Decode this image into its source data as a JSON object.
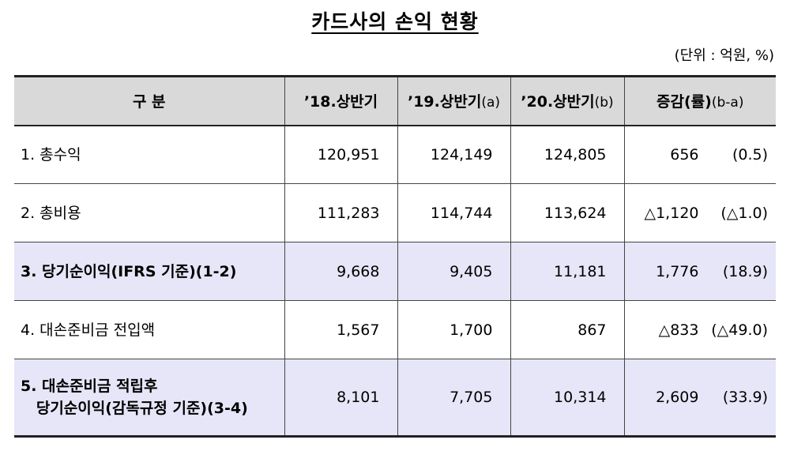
{
  "header": {
    "title": "카드사의 손익 현황",
    "unit": "(단위 : 억원, %)"
  },
  "table": {
    "columns": [
      {
        "main": "구  분"
      },
      {
        "main": "’18.상반기"
      },
      {
        "main": "’19.상반기",
        "suffix": "(a)"
      },
      {
        "main": "’20.상반기",
        "suffix": "(b)"
      },
      {
        "main": "증감(률)",
        "suffix": "(b-a)"
      }
    ],
    "rows": [
      {
        "label": [
          "1. 총수익"
        ],
        "values": [
          "120,951",
          "124,149",
          "124,805"
        ],
        "change": "656",
        "rate": "(0.5)"
      },
      {
        "label": [
          "2. 총비용"
        ],
        "values": [
          "111,283",
          "114,744",
          "113,624"
        ],
        "change": "△1,120",
        "rate": "(△1.0)"
      },
      {
        "label": [
          "3. 당기순이익(IFRS 기준)(1-2)"
        ],
        "values": [
          "9,668",
          "9,405",
          "11,181"
        ],
        "change": "1,776",
        "rate": "(18.9)",
        "highlight": true
      },
      {
        "label": [
          "4. 대손준비금 전입액"
        ],
        "values": [
          "1,567",
          "1,700",
          "867"
        ],
        "change": "△833",
        "rate": "(△49.0)"
      },
      {
        "label": [
          "5. 대손준비금 적립후",
          "   당기순이익(감독규정 기준)(3-4)"
        ],
        "values": [
          "8,101",
          "7,705",
          "10,314"
        ],
        "change": "2,609",
        "rate": "(33.9)",
        "highlight": true
      }
    ]
  }
}
